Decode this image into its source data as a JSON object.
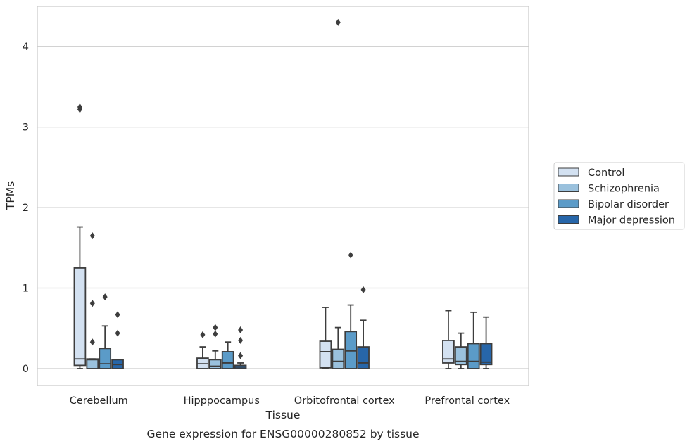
{
  "chart_data": {
    "type": "box",
    "title": "",
    "caption": "Gene expression for ENSG00000280852 by tissue",
    "xlabel": "Tissue",
    "ylabel": "TPMs",
    "ylim": [
      -0.21,
      4.5
    ],
    "yticks": [
      0,
      1,
      2,
      3,
      4
    ],
    "grid": "horizontal",
    "legend_position": "right",
    "categories": [
      "Cerebellum",
      "Hipppocampus",
      "Orbitofrontal cortex",
      "Prefrontal cortex"
    ],
    "series": [
      {
        "name": "Control",
        "color": "#d3e1f1",
        "boxes": [
          {
            "whisker_low": 0.0,
            "q1": 0.04,
            "median": 0.12,
            "q3": 1.25,
            "whisker_high": 1.76,
            "outliers": [
              3.22,
              3.25
            ]
          },
          {
            "whisker_low": 0.0,
            "q1": 0.0,
            "median": 0.06,
            "q3": 0.13,
            "whisker_high": 0.27,
            "outliers": [
              0.42
            ]
          },
          {
            "whisker_low": 0.0,
            "q1": 0.01,
            "median": 0.21,
            "q3": 0.34,
            "whisker_high": 0.76,
            "outliers": []
          },
          {
            "whisker_low": 0.0,
            "q1": 0.07,
            "median": 0.12,
            "q3": 0.35,
            "whisker_high": 0.72,
            "outliers": []
          }
        ]
      },
      {
        "name": "Schizophrenia",
        "color": "#9ac1dd",
        "boxes": [
          {
            "whisker_low": 0.0,
            "q1": 0.0,
            "median": 0.11,
            "q3": 0.12,
            "whisker_high": 0.12,
            "outliers": [
              0.33,
              0.81,
              1.65
            ]
          },
          {
            "whisker_low": 0.0,
            "q1": 0.0,
            "median": 0.03,
            "q3": 0.11,
            "whisker_high": 0.22,
            "outliers": [
              0.43,
              0.51
            ]
          },
          {
            "whisker_low": 0.0,
            "q1": 0.0,
            "median": 0.09,
            "q3": 0.24,
            "whisker_high": 0.51,
            "outliers": [
              4.3
            ]
          },
          {
            "whisker_low": 0.0,
            "q1": 0.05,
            "median": 0.09,
            "q3": 0.27,
            "whisker_high": 0.44,
            "outliers": []
          }
        ]
      },
      {
        "name": "Bipolar disorder",
        "color": "#5b9bc8",
        "boxes": [
          {
            "whisker_low": 0.0,
            "q1": 0.0,
            "median": 0.06,
            "q3": 0.25,
            "whisker_high": 0.53,
            "outliers": [
              0.89
            ]
          },
          {
            "whisker_low": 0.0,
            "q1": 0.0,
            "median": 0.07,
            "q3": 0.21,
            "whisker_high": 0.33,
            "outliers": []
          },
          {
            "whisker_low": 0.0,
            "q1": 0.0,
            "median": 0.22,
            "q3": 0.46,
            "whisker_high": 0.79,
            "outliers": [
              1.41
            ]
          },
          {
            "whisker_low": 0.0,
            "q1": 0.0,
            "median": 0.09,
            "q3": 0.31,
            "whisker_high": 0.7,
            "outliers": []
          }
        ]
      },
      {
        "name": "Major depression",
        "color": "#2766a9",
        "boxes": [
          {
            "whisker_low": 0.0,
            "q1": 0.0,
            "median": 0.05,
            "q3": 0.11,
            "whisker_high": 0.11,
            "outliers": [
              0.44,
              0.67
            ]
          },
          {
            "whisker_low": 0.0,
            "q1": 0.0,
            "median": 0.02,
            "q3": 0.04,
            "whisker_high": 0.07,
            "outliers": [
              0.16,
              0.35,
              0.48
            ]
          },
          {
            "whisker_low": 0.0,
            "q1": 0.0,
            "median": 0.07,
            "q3": 0.27,
            "whisker_high": 0.6,
            "outliers": [
              0.98
            ]
          },
          {
            "whisker_low": 0.0,
            "q1": 0.05,
            "median": 0.08,
            "q3": 0.31,
            "whisker_high": 0.64,
            "outliers": []
          }
        ]
      }
    ]
  }
}
